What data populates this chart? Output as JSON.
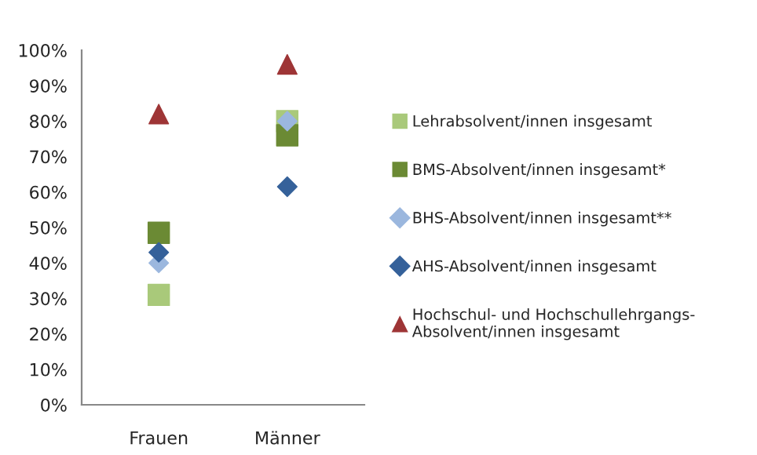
{
  "chart_data": {
    "type": "scatter",
    "categories": [
      "Frauen",
      "Männer"
    ],
    "series": [
      {
        "name": "Lehrabsolvent/innen insgesamt",
        "color": "#a9c97a",
        "marker": "square",
        "values": [
          31,
          80
        ]
      },
      {
        "name": "BMS-Absolvent/innen insgesamt*",
        "color": "#6b8a34",
        "marker": "square",
        "values": [
          48.5,
          76
        ]
      },
      {
        "name": "BHS-Absolvent/innen insgesamt**",
        "color": "#9bb7de",
        "marker": "diamond",
        "values": [
          40,
          80
        ]
      },
      {
        "name": "AHS-Absolvent/innen insgesamt",
        "color": "#35619a",
        "marker": "diamond",
        "values": [
          43,
          61.5
        ]
      },
      {
        "name": "Hochschul- und Hochschullehrgangs-Absolvent/innen insgesamt",
        "color": "#9e3536",
        "marker": "triangle",
        "values": [
          82,
          96
        ]
      }
    ],
    "ylim": [
      0,
      100
    ],
    "yticks": [
      {
        "value": 0,
        "label": "0%"
      },
      {
        "value": 10,
        "label": "10%"
      },
      {
        "value": 20,
        "label": "20%"
      },
      {
        "value": 30,
        "label": "30%"
      },
      {
        "value": 40,
        "label": "40%"
      },
      {
        "value": 50,
        "label": "50%"
      },
      {
        "value": 60,
        "label": "60%"
      },
      {
        "value": 70,
        "label": "70%"
      },
      {
        "value": 80,
        "label": "80%"
      },
      {
        "value": 90,
        "label": "90%"
      },
      {
        "value": 100,
        "label": "100%"
      }
    ],
    "grid": false,
    "legend": "right"
  }
}
